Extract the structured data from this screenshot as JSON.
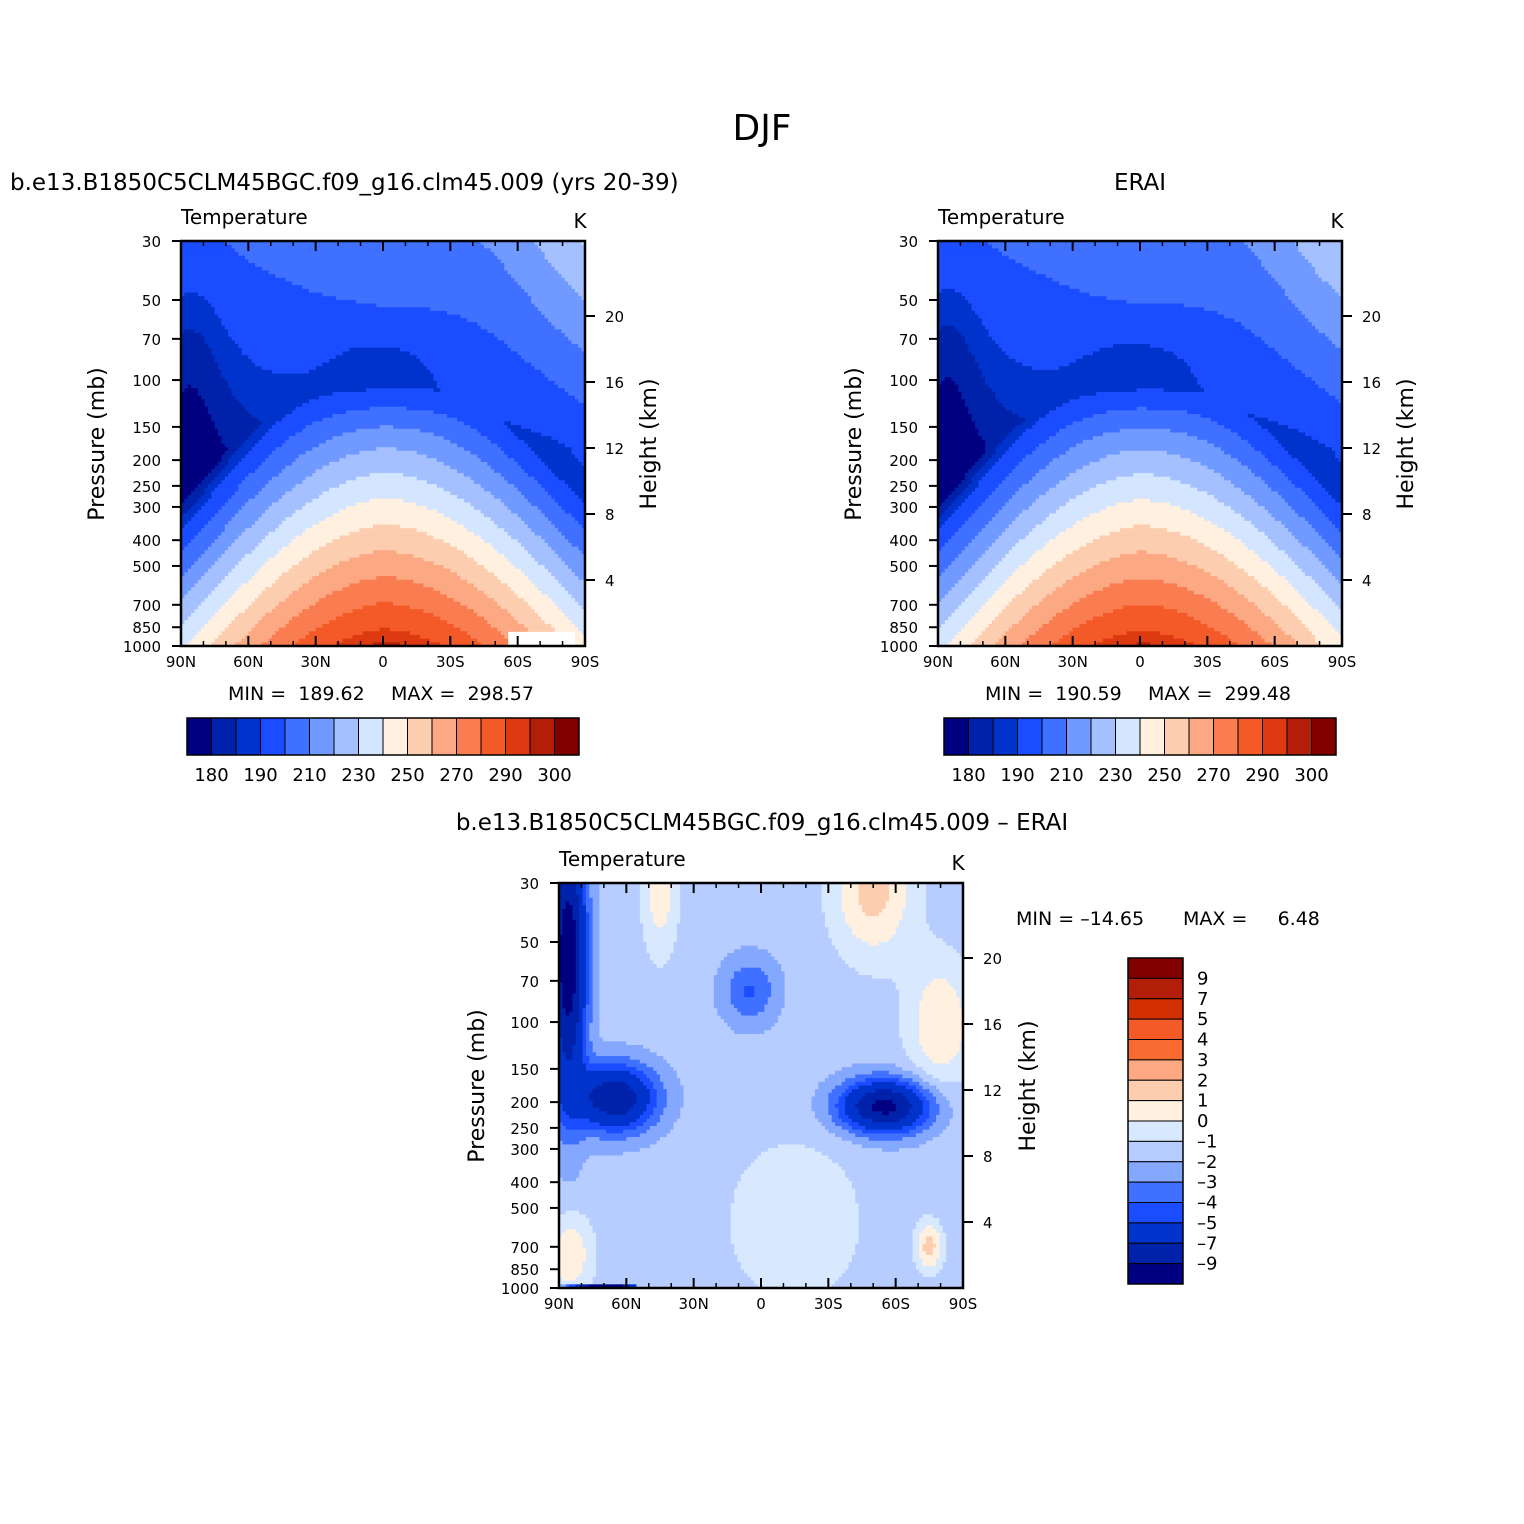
{
  "figure_title": "DJF",
  "colors": {
    "absolute_palette": [
      "#000080",
      "#0022aa",
      "#0033cc",
      "#1a4dff",
      "#4070ff",
      "#709aff",
      "#a5c0ff",
      "#d4e5ff",
      "#fff0e0",
      "#fdcdb0",
      "#fca882",
      "#f97d50",
      "#f45a28",
      "#dd3a12",
      "#b31e08",
      "#800000"
    ],
    "difference_palette": [
      "#000080",
      "#0022aa",
      "#0033cc",
      "#1a4dff",
      "#4070ff",
      "#85a8ff",
      "#b7cdff",
      "#d8e8ff",
      "#fff0e0",
      "#fdcdb0",
      "#fca882",
      "#f96a30",
      "#f45a28",
      "#d23000",
      "#b31e08",
      "#800000"
    ]
  },
  "chart_data": [
    {
      "type": "contour",
      "id": "model",
      "panel_title": "b.e13.B1850C5CLM45BGC.f09_g16.clm45.009 (yrs 20-39)",
      "variable": "Temperature",
      "units": "K",
      "xlabel": "",
      "ylabel": "Pressure (mb)",
      "y2label": "Height (km)",
      "x_ticks": [
        "90N",
        "60N",
        "30N",
        "0",
        "30S",
        "60S",
        "90S"
      ],
      "y_ticks": [
        30,
        50,
        70,
        100,
        150,
        200,
        250,
        300,
        400,
        500,
        700,
        850,
        1000
      ],
      "y2_ticks": [
        4,
        8,
        12,
        16,
        20
      ],
      "min_label": "MIN =  189.62",
      "max_label": "MAX =  298.57",
      "min": 189.62,
      "max": 298.57,
      "colorbar_labels": [
        "180",
        "190",
        "210",
        "230",
        "250",
        "270",
        "290",
        "300"
      ]
    },
    {
      "type": "contour",
      "id": "obs",
      "panel_title": "ERAI",
      "variable": "Temperature",
      "units": "K",
      "xlabel": "",
      "ylabel": "Pressure (mb)",
      "y2label": "Height (km)",
      "x_ticks": [
        "90N",
        "60N",
        "30N",
        "0",
        "30S",
        "60S",
        "90S"
      ],
      "y_ticks": [
        30,
        50,
        70,
        100,
        150,
        200,
        250,
        300,
        400,
        500,
        700,
        850,
        1000
      ],
      "y2_ticks": [
        4,
        8,
        12,
        16,
        20
      ],
      "min_label": "MIN =  190.59",
      "max_label": "MAX =  299.48",
      "min": 190.59,
      "max": 299.48,
      "colorbar_labels": [
        "180",
        "190",
        "210",
        "230",
        "250",
        "270",
        "290",
        "300"
      ]
    },
    {
      "type": "contour",
      "id": "diff",
      "panel_title": "b.e13.B1850C5CLM45BGC.f09_g16.clm45.009 – ERAI",
      "variable": "Temperature",
      "units": "K",
      "xlabel": "",
      "ylabel": "Pressure (mb)",
      "y2label": "Height (km)",
      "x_ticks": [
        "90N",
        "60N",
        "30N",
        "0",
        "30S",
        "60S",
        "90S"
      ],
      "y_ticks": [
        30,
        50,
        70,
        100,
        150,
        200,
        250,
        300,
        400,
        500,
        700,
        850,
        1000
      ],
      "y2_ticks": [
        4,
        8,
        12,
        16,
        20
      ],
      "min_label": "MIN = –14.65",
      "max_label": "MAX =     6.48",
      "min": -14.65,
      "max": 6.48,
      "colorbar_labels": [
        "9",
        "7",
        "5",
        "4",
        "3",
        "2",
        "1",
        "0",
        "–1",
        "–2",
        "–3",
        "–4",
        "–5",
        "–7",
        "–9"
      ]
    }
  ]
}
